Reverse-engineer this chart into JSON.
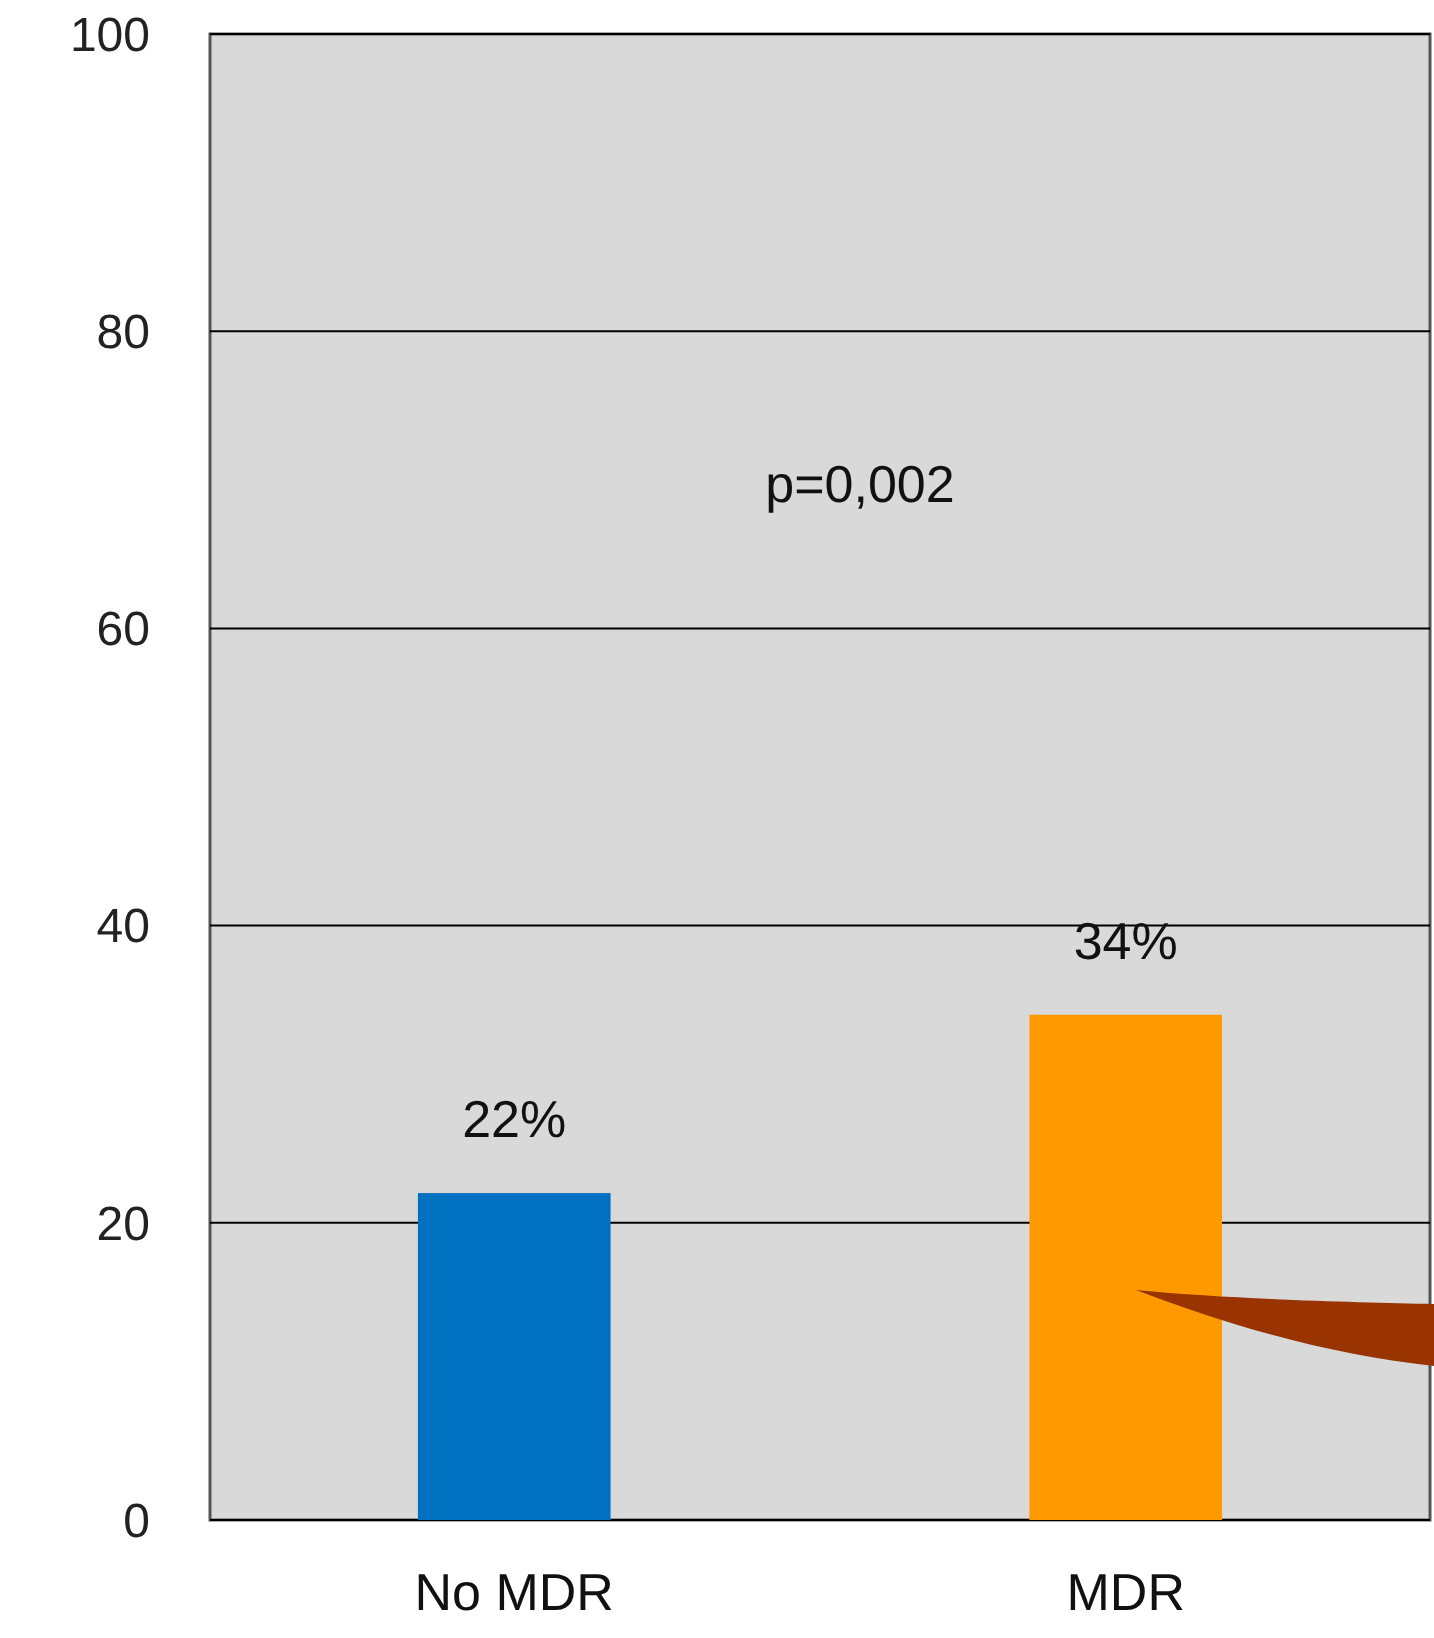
{
  "chart_data": {
    "type": "bar",
    "categories": [
      "No MDR",
      "MDR"
    ],
    "values": [
      22,
      34
    ],
    "colors": [
      "#0070c0",
      "#ff9900"
    ],
    "value_labels": [
      "22%",
      "34%"
    ],
    "ylim": [
      0,
      100
    ],
    "yticks": [
      0,
      20,
      40,
      60,
      80,
      100
    ],
    "grid": "y",
    "annotations": [
      "p=0,002"
    ]
  }
}
